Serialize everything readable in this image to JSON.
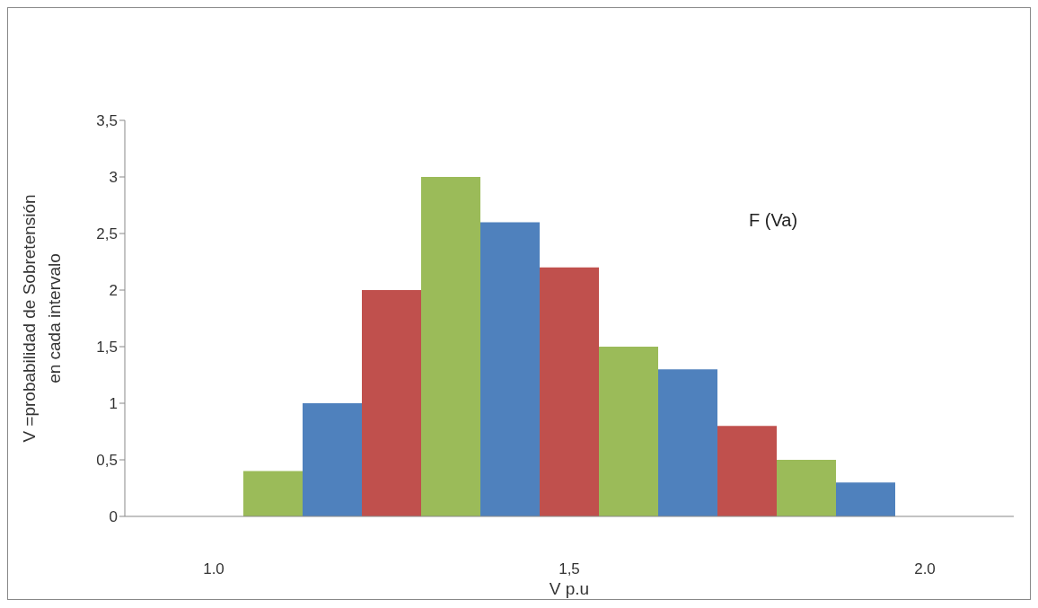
{
  "chart_data": {
    "type": "bar",
    "xlabel": "V p.u",
    "ylabel": "V =probabilidad de  Sobretensión\nen cada intervalo",
    "categories": [
      null,
      "1.0",
      null,
      null,
      null,
      null,
      null,
      "1,5",
      null,
      null,
      null,
      null,
      null,
      "2.0",
      null
    ],
    "values": [
      null,
      null,
      0.4,
      1,
      2,
      3,
      2.6,
      2.2,
      1.5,
      1.3,
      0.8,
      0.5,
      0.3,
      null,
      null
    ],
    "colors": [
      "#9bbb59",
      "#4f81bd",
      "#9bbb59",
      "#4f81bd",
      "#c0504d",
      "#9bbb59",
      "#4f81bd",
      "#c0504d",
      "#9bbb59",
      "#4f81bd",
      "#c0504d",
      "#9bbb59",
      "#4f81bd",
      "#c0504d",
      "#9bbb59"
    ],
    "ylim": [
      0,
      3.5
    ],
    "yticks": [
      0,
      {
        "value": 0.5,
        "label": "0,5"
      },
      1,
      {
        "value": 1.5,
        "label": "1,5"
      },
      2,
      {
        "value": 2.5,
        "label": "2,5"
      },
      3,
      {
        "value": 3.5,
        "label": "3,5"
      }
    ],
    "grid": false,
    "legend": false,
    "annotations": [
      "F (Va)"
    ]
  }
}
